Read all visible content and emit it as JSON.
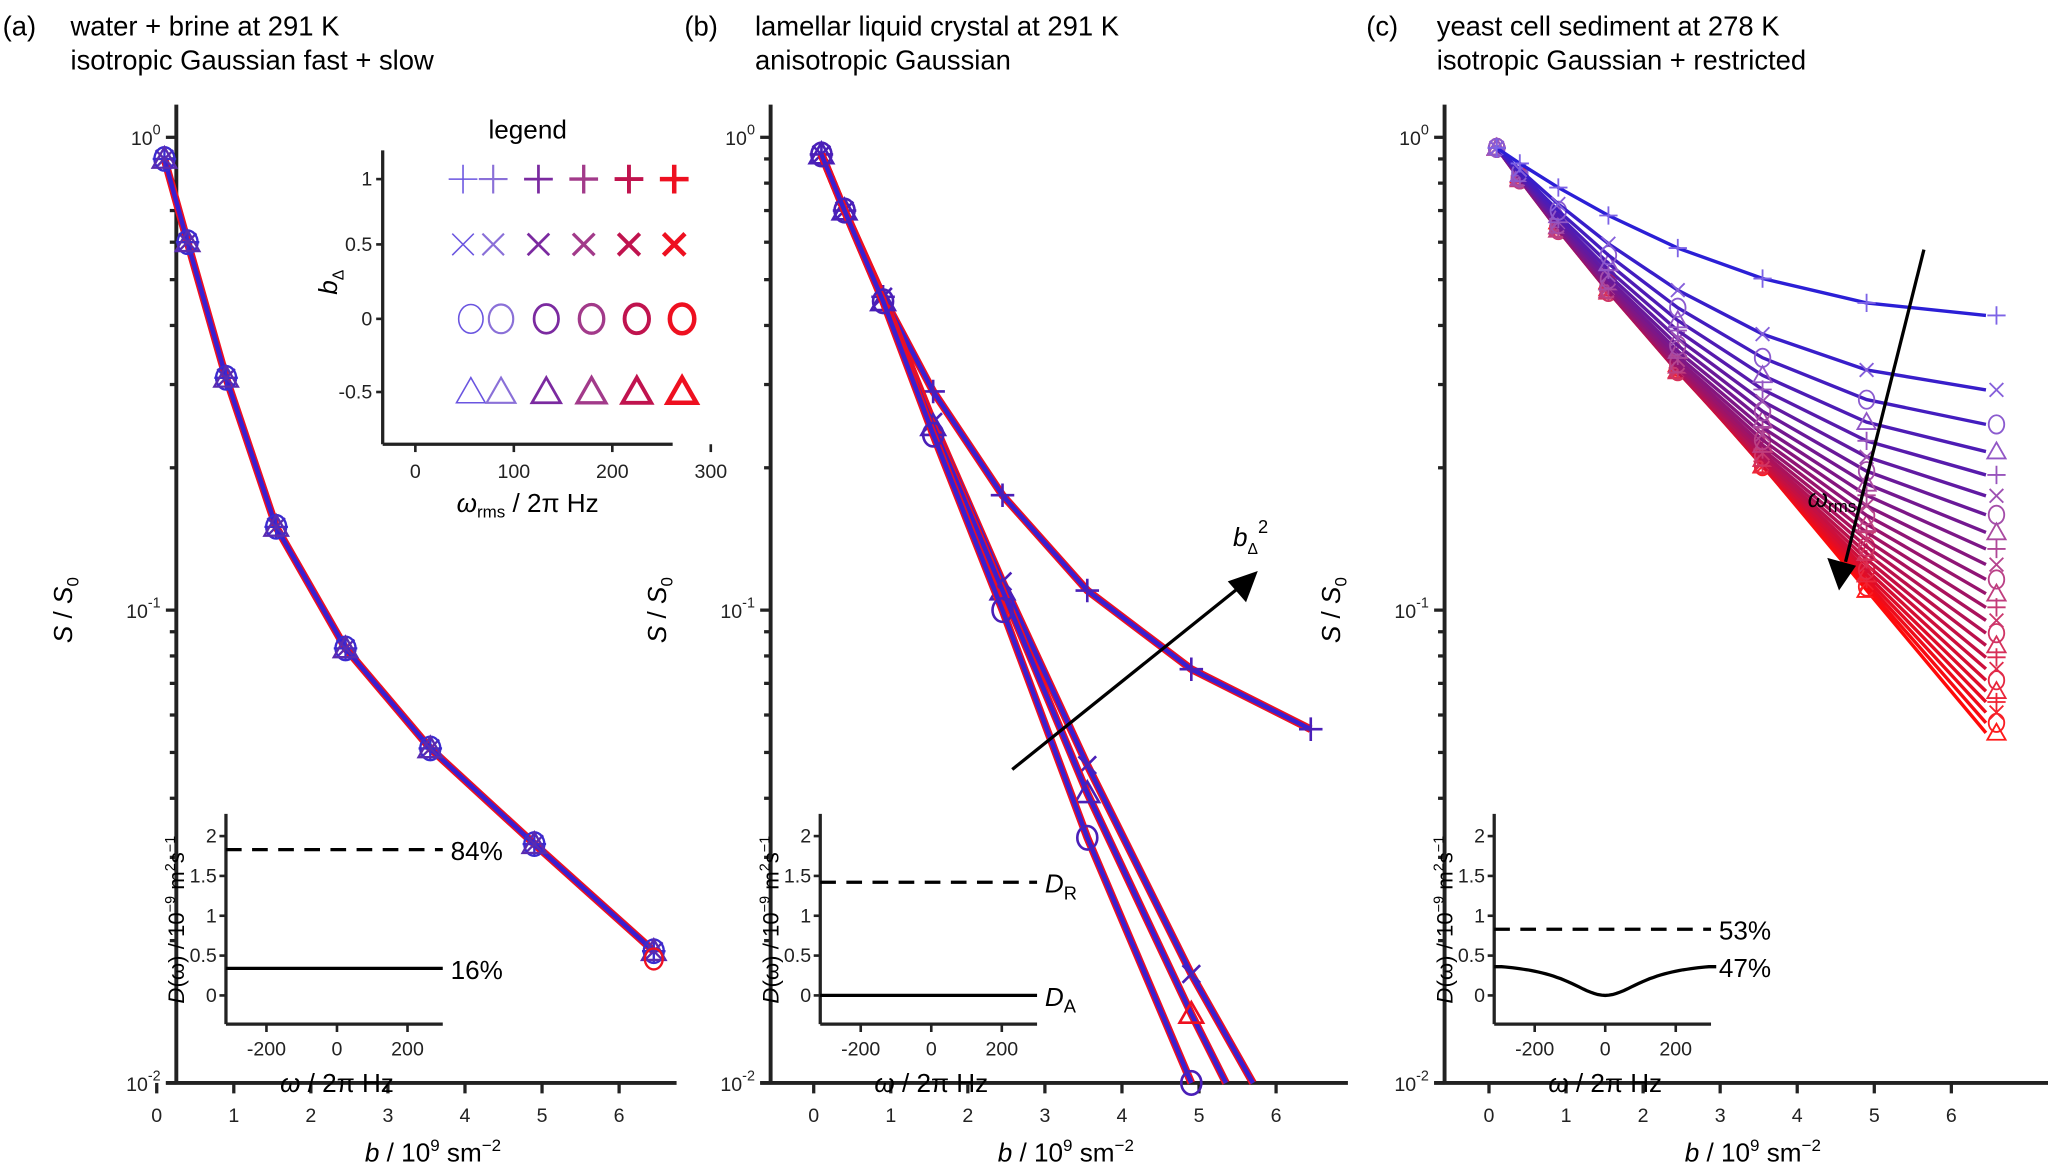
{
  "chart_data": [
    {
      "id": "a",
      "type": "line",
      "panel_label": "(a)",
      "title": "water + brine at 291 K",
      "subtitle": "isotropic Gaussian fast + slow",
      "xlabel": "b / 10^9 sm^-2",
      "ylabel": "S / S0",
      "xlim": [
        -0.3,
        6.8
      ],
      "ylim": [
        0.01,
        1
      ],
      "yscale": "log",
      "xticks": [
        "0",
        "1",
        "2",
        "3",
        "4",
        "5",
        "6"
      ],
      "yticks": [
        "10^0",
        "10^-1",
        "10^-2"
      ],
      "series_note": "all b_Delta and omega_rms series overlap",
      "series": [
        {
          "name": "all series (overlapping)",
          "marker": "mixed",
          "x": [
            0.1,
            0.4,
            0.9,
            1.55,
            2.45,
            3.55,
            4.9,
            6.45
          ],
          "y": [
            0.9,
            0.6,
            0.31,
            0.15,
            0.083,
            0.051,
            0.032,
            0.019
          ]
        }
      ],
      "legend_inset": {
        "title": "legend",
        "ylabel": "b_Delta",
        "xlabel": "omega_rms / 2pi Hz",
        "xticks": [
          "0",
          "100",
          "200",
          "300"
        ],
        "yticks": [
          "1",
          "0.5",
          "0",
          "-0.5"
        ],
        "rows": [
          {
            "b_delta": 1,
            "marker": "plus"
          },
          {
            "b_delta": 0.5,
            "marker": "cross"
          },
          {
            "b_delta": 0,
            "marker": "circle"
          },
          {
            "b_delta": -0.5,
            "marker": "triangle"
          }
        ],
        "omega_rms": [
          50,
          80,
          125,
          170,
          215,
          260
        ],
        "colors": [
          "#6a55e0",
          "#8a70d8",
          "#7b2aa0",
          "#a23a8a",
          "#c0134e",
          "#ee1020"
        ]
      },
      "D_inset": {
        "xlabel": "omega / 2pi Hz",
        "ylabel": "D(omega) / 10^-9 m^2 s^-1",
        "xticks": [
          "-200",
          "0",
          "200"
        ],
        "yticks": [
          "2",
          "1.5",
          "1",
          "0.5",
          "0"
        ],
        "lines": [
          {
            "style": "dashed",
            "value": 1.83,
            "label": "84%"
          },
          {
            "style": "solid",
            "value": 0.34,
            "label": "16%"
          }
        ]
      }
    },
    {
      "id": "b",
      "type": "line",
      "panel_label": "(b)",
      "title": "lamellar liquid crystal at 291 K",
      "subtitle": "anisotropic Gaussian",
      "xlabel": "b / 10^9 sm^-2",
      "ylabel": "S / S0",
      "xlim": [
        -0.3,
        6.8
      ],
      "ylim": [
        0.01,
        1
      ],
      "yscale": "log",
      "xticks": [
        "0",
        "1",
        "2",
        "3",
        "4",
        "5",
        "6"
      ],
      "yticks": [
        "10^0",
        "10^-1",
        "10^-2"
      ],
      "series": [
        {
          "name": "b_Delta = 1",
          "marker": "plus",
          "x": [
            0.1,
            0.4,
            0.9,
            1.55,
            2.45,
            3.55,
            4.9,
            6.45
          ],
          "y": [
            0.92,
            0.7,
            0.46,
            0.29,
            0.175,
            0.11,
            0.075,
            0.056
          ]
        },
        {
          "name": "b_Delta = 0.5",
          "marker": "cross",
          "x": [
            0.1,
            0.4,
            0.9,
            1.55,
            2.45,
            3.55,
            4.9,
            5.7
          ],
          "y": [
            0.92,
            0.7,
            0.46,
            0.25,
            0.115,
            0.047,
            0.017,
            0.01
          ]
        },
        {
          "name": "b_Delta = -0.5",
          "marker": "triangle",
          "x": [
            0.1,
            0.4,
            0.9,
            1.55,
            2.45,
            3.55,
            4.9,
            5.35
          ],
          "y": [
            0.92,
            0.7,
            0.45,
            0.245,
            0.11,
            0.041,
            0.014,
            0.01
          ]
        },
        {
          "name": "b_Delta = 0",
          "marker": "circle",
          "x": [
            0.1,
            0.4,
            0.9,
            1.55,
            2.45,
            3.55,
            4.9
          ],
          "y": [
            0.92,
            0.7,
            0.45,
            0.235,
            0.1,
            0.033,
            0.01
          ]
        }
      ],
      "annotation": {
        "text": "b_Delta^2",
        "arrow": "increasing b_Delta^2"
      },
      "D_inset": {
        "xlabel": "omega / 2pi Hz",
        "ylabel": "D(omega) / 10^-9 m^2 s^-1",
        "xticks": [
          "-200",
          "0",
          "200"
        ],
        "yticks": [
          "2",
          "1.5",
          "1",
          "0.5",
          "0"
        ],
        "lines": [
          {
            "style": "dashed",
            "value": 1.42,
            "label": "D_R"
          },
          {
            "style": "solid",
            "value": 0.0,
            "label": "D_A"
          }
        ]
      }
    },
    {
      "id": "c",
      "type": "line",
      "panel_label": "(c)",
      "title": "yeast cell sediment at 278 K",
      "subtitle": "isotropic Gaussian + restricted",
      "xlabel": "b / 10^9 sm^-2",
      "ylabel": "S / S0",
      "xlim": [
        -0.3,
        6.8
      ],
      "ylim": [
        0.01,
        1
      ],
      "yscale": "log",
      "xticks": [
        "0",
        "1",
        "2",
        "3",
        "4",
        "5",
        "6"
      ],
      "yticks": [
        "10^0",
        "10^-1",
        "10^-2"
      ],
      "fan": {
        "count": 24,
        "x": [
          0.1,
          0.4,
          0.9,
          1.55,
          2.45,
          3.55,
          4.9,
          6.45
        ],
        "start_y": 0.95,
        "end_y_top": 0.42,
        "end_y_bottom": 0.055,
        "color_low_omega": "#2b1fd6",
        "color_high_omega": "#ff0a0a"
      },
      "annotation": {
        "text": "omega_rms",
        "arrow": "increasing omega_rms"
      },
      "D_inset": {
        "xlabel": "omega / 2pi Hz",
        "ylabel": "D(omega) / 10^-9 m^2 s^-1",
        "xticks": [
          "-200",
          "0",
          "200"
        ],
        "yticks": [
          "2",
          "1.5",
          "1",
          "0.5",
          "0"
        ],
        "lines": [
          {
            "style": "dashed",
            "value": 0.83,
            "label": "53%"
          },
          {
            "style": "curve",
            "value_edge": 0.36,
            "value_center": 0.0,
            "label": "47%"
          }
        ]
      }
    }
  ],
  "labels": {
    "a_panel": "(a)",
    "a_title": "water + brine at 291 K",
    "a_sub": "isotropic Gaussian fast + slow",
    "b_panel": "(b)",
    "b_title": "lamellar liquid crystal at 291 K",
    "b_sub": "anisotropic Gaussian",
    "c_panel": "(c)",
    "c_title": "yeast cell sediment at 278 K",
    "c_sub": "isotropic Gaussian + restricted",
    "legend": "legend",
    "b_italic": "b",
    "xlab_rest": " / 10",
    "xlab_exp": "9",
    "xlab_unit": " sm",
    "xlab_unit_exp": "−2",
    "S": "S",
    "S0": "S",
    "S0_sub": "0",
    "slash": " / ",
    "pct84": "84%",
    "pct16": "16%",
    "pct53": "53%",
    "pct47": "47%",
    "DR": "D",
    "DR_sub": "R",
    "DA": "D",
    "DA_sub": "A",
    "bdelta": "b",
    "bdelta_sub": "Δ",
    "bdelta_sup": "2",
    "omega": "ω",
    "rms": "rms",
    "omega_xlab_rest": " / 2π Hz",
    "D_ylab_D": "D",
    "D_ylab_rest": "(ω) / 10",
    "D_ylab_exp": "−9",
    "D_ylab_unit": " m",
    "D_ylab_unit2": "2",
    "D_ylab_s": "s",
    "D_ylab_s_exp": "−1",
    "y_tick_base": "10",
    "y_tick_exp": [
      "0",
      "-1",
      "-2"
    ],
    "x_ticks": [
      "0",
      "1",
      "2",
      "3",
      "4",
      "5",
      "6"
    ],
    "inset_x_ticks": [
      "-200",
      "0",
      "200"
    ],
    "inset_y_ticks": [
      "2",
      "1.5",
      "1",
      "0.5",
      "0"
    ],
    "legend_x_ticks": [
      "0",
      "100",
      "200",
      "300"
    ],
    "legend_y_ticks": [
      "1",
      "0.5",
      "0",
      "-0.5"
    ]
  }
}
